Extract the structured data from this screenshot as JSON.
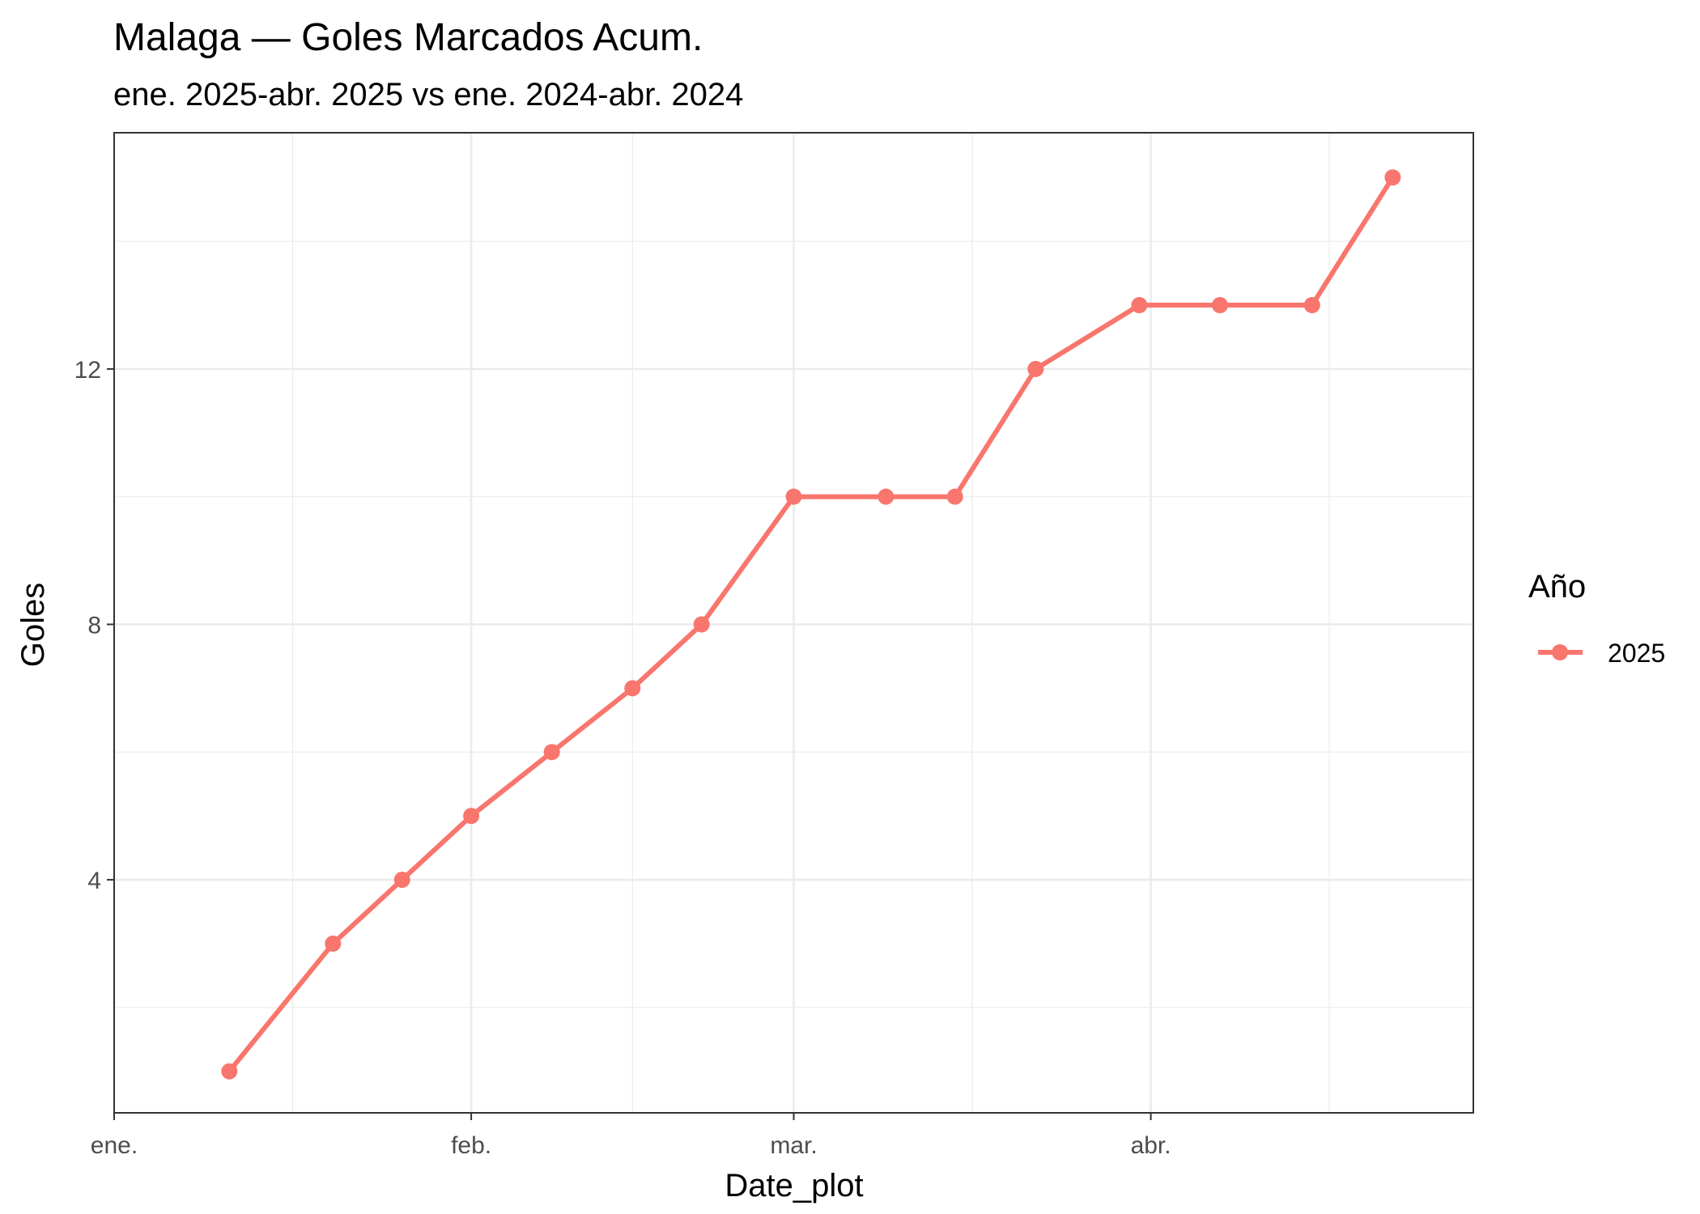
{
  "chart_data": {
    "type": "line",
    "title": "Malaga — Goles Marcados Acum.",
    "subtitle": "ene. 2025-abr. 2025 vs ene. 2024-abr. 2024",
    "xlabel": "Date_plot",
    "ylabel": "Goles",
    "x_axis": {
      "type": "date",
      "range": [
        "2025-01-01",
        "2025-04-29"
      ],
      "ticks": [
        {
          "date": "2025-01-01",
          "label": "ene."
        },
        {
          "date": "2025-02-01",
          "label": "feb."
        },
        {
          "date": "2025-03-01",
          "label": "mar."
        },
        {
          "date": "2025-04-01",
          "label": "abr."
        }
      ]
    },
    "y_axis": {
      "range": [
        0.35,
        15.7
      ],
      "ticks": [
        4,
        8,
        12
      ]
    },
    "grid": true,
    "legend": {
      "title": "Año",
      "position": "right"
    },
    "series": [
      {
        "name": "2025",
        "color": "#F8766D",
        "points": [
          {
            "x": "2025-01-11",
            "y": 1
          },
          {
            "x": "2025-01-20",
            "y": 3
          },
          {
            "x": "2025-01-26",
            "y": 4
          },
          {
            "x": "2025-02-01",
            "y": 5
          },
          {
            "x": "2025-02-08",
            "y": 6
          },
          {
            "x": "2025-02-15",
            "y": 7
          },
          {
            "x": "2025-02-21",
            "y": 8
          },
          {
            "x": "2025-03-01",
            "y": 10
          },
          {
            "x": "2025-03-09",
            "y": 10
          },
          {
            "x": "2025-03-15",
            "y": 10
          },
          {
            "x": "2025-03-22",
            "y": 12
          },
          {
            "x": "2025-03-31",
            "y": 13
          },
          {
            "x": "2025-04-07",
            "y": 13
          },
          {
            "x": "2025-04-15",
            "y": 13
          },
          {
            "x": "2025-04-22",
            "y": 15
          }
        ]
      }
    ]
  }
}
